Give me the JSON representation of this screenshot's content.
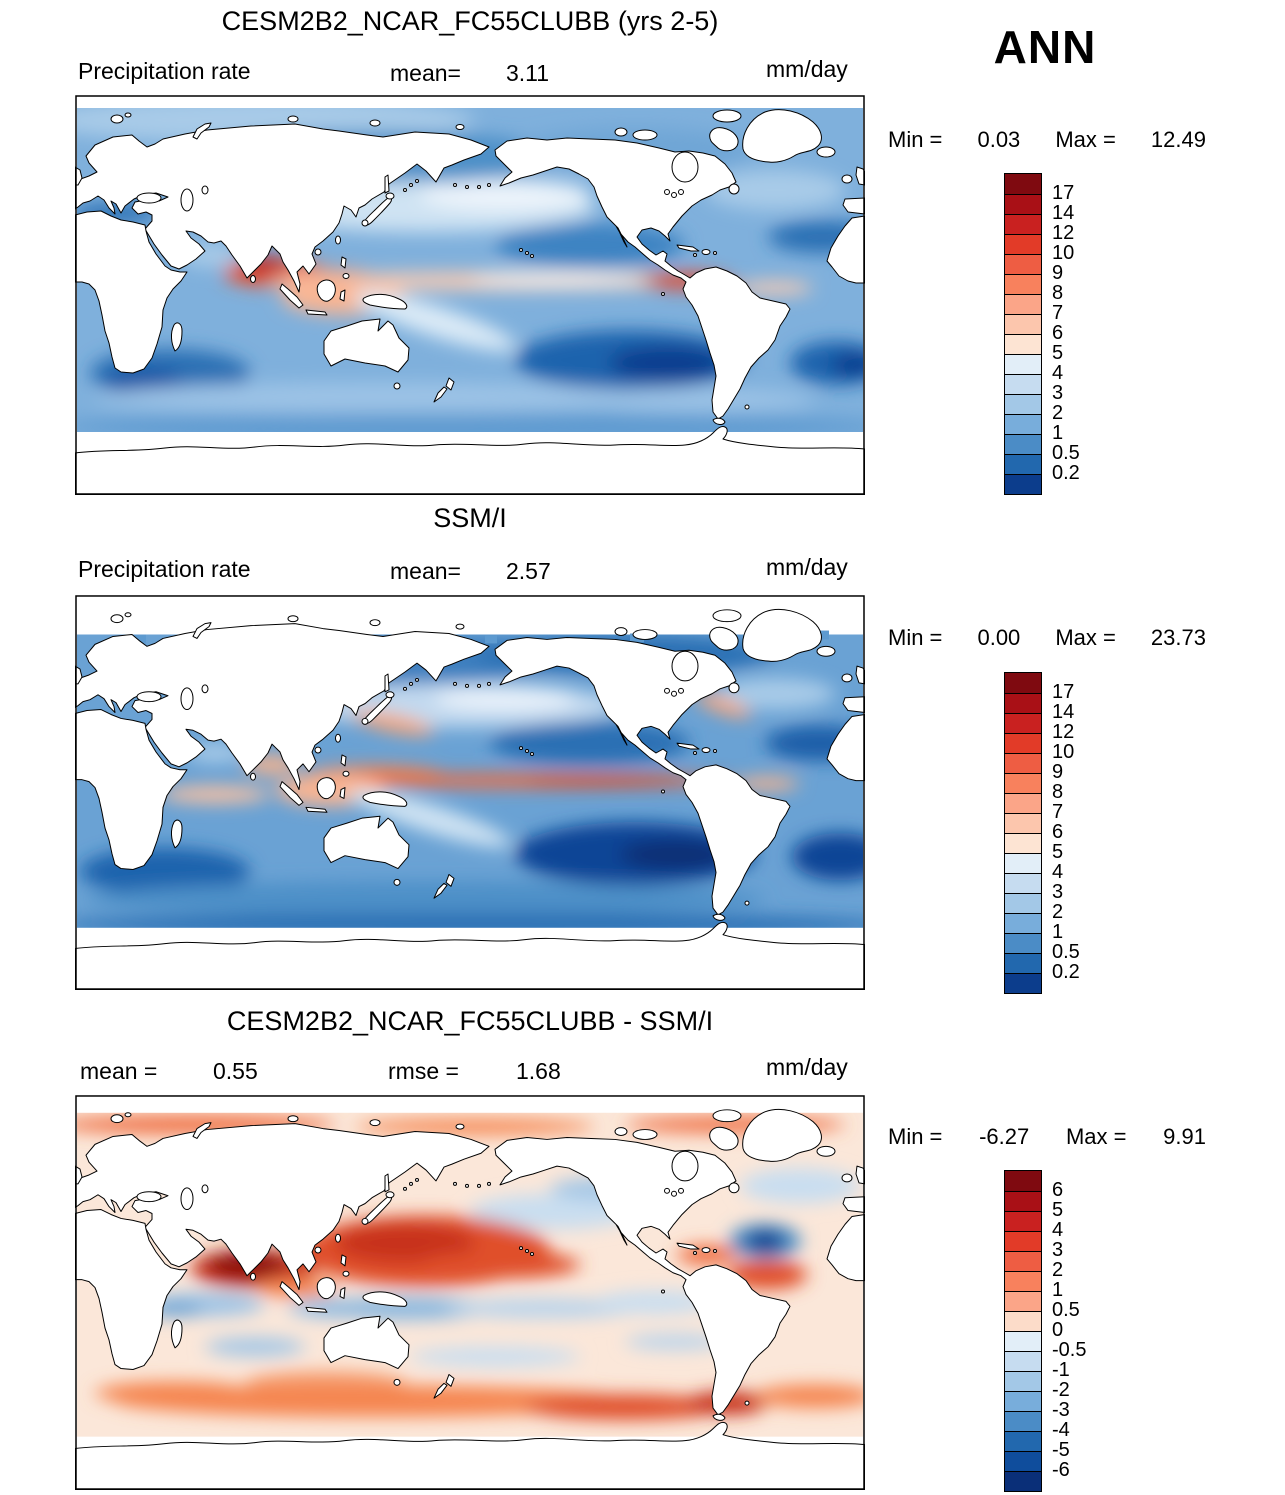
{
  "figure": {
    "season": "ANN"
  },
  "panels": {
    "model": {
      "title": "CESM2B2_NCAR_FC55CLUBB (yrs 2-5)",
      "field": "Precipitation rate",
      "mean_label": "mean=",
      "mean": "3.11",
      "units": "mm/day",
      "min_label": "Min =",
      "min": "0.03",
      "max_label": "Max =",
      "max": "12.49"
    },
    "obs": {
      "title": "SSM/I",
      "field": "Precipitation rate",
      "mean_label": "mean=",
      "mean": "2.57",
      "units": "mm/day",
      "min_label": "Min =",
      "min": "0.00",
      "max_label": "Max =",
      "max": "23.73"
    },
    "diff": {
      "title": "CESM2B2_NCAR_FC55CLUBB - SSM/I",
      "mean_label": "mean =",
      "mean": "0.55",
      "rmse_label": "rmse =",
      "rmse": "1.68",
      "units": "mm/day",
      "min_label": "Min =",
      "min": "-6.27",
      "max_label": "Max =",
      "max": "9.91"
    }
  },
  "colorbars": {
    "precip": {
      "labels": [
        "17",
        "14",
        "12",
        "10",
        "9",
        "8",
        "7",
        "6",
        "5",
        "4",
        "3",
        "2",
        "1",
        "0.5",
        "0.2"
      ],
      "colors": [
        "#7f0a10",
        "#a91016",
        "#c92120",
        "#e23b28",
        "#ee5d43",
        "#f8815d",
        "#fba588",
        "#fcc6ad",
        "#fde4d3",
        "#e2eef8",
        "#c6dcf0",
        "#a3c8e7",
        "#78addb",
        "#4b8cc6",
        "#2268ae",
        "#0c3d8c"
      ]
    },
    "diff": {
      "labels": [
        "6",
        "5",
        "4",
        "3",
        "2",
        "1",
        "0.5",
        "0",
        "-0.5",
        "-1",
        "-2",
        "-3",
        "-4",
        "-5",
        "-6"
      ],
      "colors": [
        "#7f0a10",
        "#a91016",
        "#c92120",
        "#e23b28",
        "#ee5d43",
        "#f8815d",
        "#fba588",
        "#fcdcc9",
        "#e2eef8",
        "#c6dcf0",
        "#a3c8e7",
        "#78addb",
        "#4b8cc6",
        "#2268ae",
        "#0f4d9c",
        "#0a2f78"
      ]
    }
  },
  "chart_data": [
    {
      "type": "heatmap",
      "subtype": "global filled-contour map, cylindrical equidistant, Pacific-centered, ocean-only (land masked white)",
      "title": "CESM2B2_NCAR_FC55CLUBB (yrs 2-5)",
      "season": "ANN",
      "variable": "Precipitation rate",
      "units": "mm/day",
      "mean": 3.11,
      "min": 0.03,
      "max": 12.49,
      "contour_levels": [
        0.2,
        0.5,
        1,
        2,
        3,
        4,
        5,
        6,
        7,
        8,
        9,
        10,
        12,
        14,
        17
      ],
      "legend_position": "right vertical colorbar",
      "pattern_notes": "Red/orange ITCZ band near 5-10N across Indian and Pacific oceans; deep red maximum over Bay of Bengal; dark blue dry minima in SE Pacific, S Atlantic, subtropical N Atlantic and S Indian Ocean; pale storm tracks in midlatitude N Pacific"
    },
    {
      "type": "heatmap",
      "subtype": "global filled-contour map, cylindrical equidistant, Pacific-centered, ocean-only (land masked white)",
      "title": "SSM/I",
      "season": "ANN",
      "variable": "Precipitation rate",
      "units": "mm/day",
      "mean": 2.57,
      "min": 0.0,
      "max": 23.73,
      "contour_levels": [
        0.2,
        0.5,
        1,
        2,
        3,
        4,
        5,
        6,
        7,
        8,
        9,
        10,
        12,
        14,
        17
      ],
      "legend_position": "right vertical colorbar",
      "pattern_notes": "Narrow orange ITCZ band just north of equator; pink warm pool near Indonesia; large dark-navy dry zones in SE Pacific and subtropical Atlantics; generally lower values than model"
    },
    {
      "type": "heatmap",
      "subtype": "difference map (model minus observations), cylindrical equidistant, Pacific-centered, ocean-only",
      "title": "CESM2B2_NCAR_FC55CLUBB - SSM/I",
      "season": "ANN",
      "variable": "Precipitation rate difference",
      "units": "mm/day",
      "mean": 0.55,
      "rmse": 1.68,
      "min": -6.27,
      "max": 9.91,
      "contour_levels": [
        -6,
        -5,
        -4,
        -3,
        -2,
        -1,
        -0.5,
        0,
        0.5,
        1,
        2,
        3,
        4,
        5,
        6
      ],
      "legend_position": "right vertical colorbar",
      "pattern_notes": "Strong positive bias (dark red) over Arabian Sea/Bay of Bengal and western-central North Pacific; positive band over Southern Ocean midlatitudes; negative (blue) patches south of equator and dark navy spot in subtropical North Atlantic"
    }
  ]
}
